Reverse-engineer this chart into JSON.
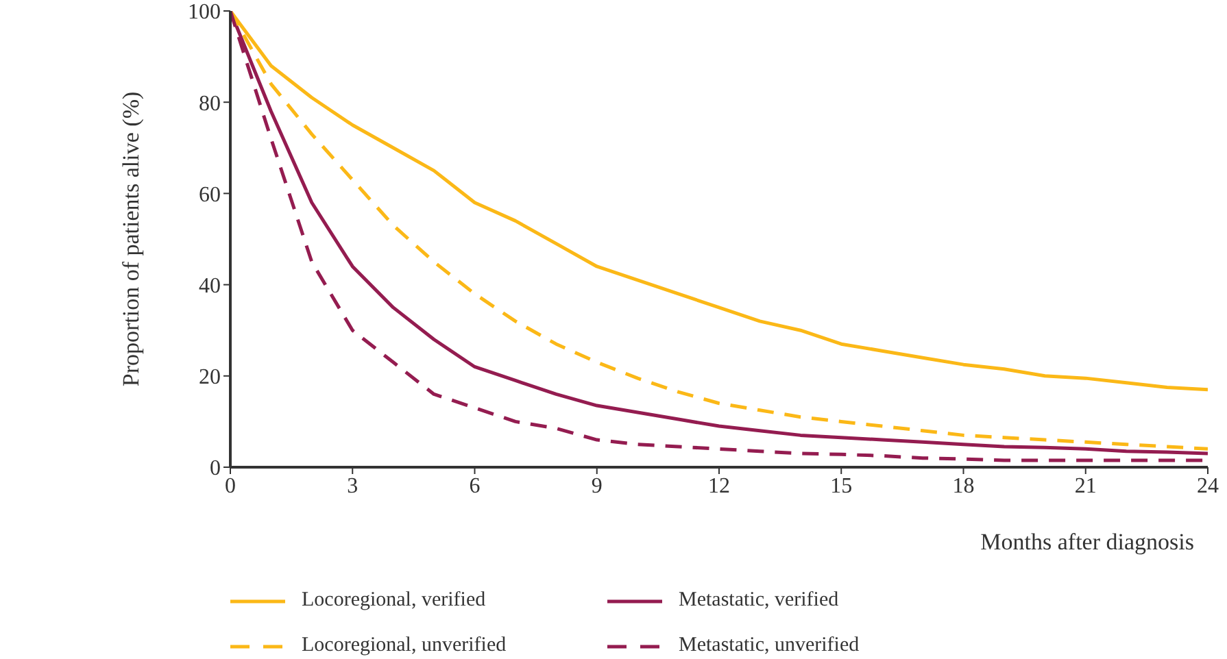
{
  "chart_data": {
    "type": "line",
    "xlabel": "Months after diagnosis",
    "ylabel": "Proportion of patients alive (%)",
    "x": [
      0,
      1,
      2,
      3,
      4,
      5,
      6,
      7,
      8,
      9,
      10,
      11,
      12,
      13,
      14,
      15,
      16,
      17,
      18,
      19,
      20,
      21,
      22,
      23,
      24
    ],
    "series": [
      {
        "name": "Locoregional, verified",
        "color": "#fbb817",
        "line_style": "solid",
        "values": [
          100,
          88,
          81,
          75,
          70,
          65,
          58,
          54,
          49,
          44,
          41,
          38,
          35,
          32,
          30,
          27,
          25.5,
          24,
          22.5,
          21.5,
          20,
          19.5,
          18.5,
          17.5,
          17
        ]
      },
      {
        "name": "Metastatic, verified",
        "color": "#941c50",
        "line_style": "solid",
        "values": [
          100,
          78,
          58,
          44,
          35,
          28,
          22,
          19,
          16,
          13.5,
          12,
          10.5,
          9,
          8,
          7,
          6.5,
          6,
          5.5,
          5,
          4.5,
          4.3,
          4,
          3.5,
          3.3,
          3
        ]
      },
      {
        "name": "Locoregional, unverified",
        "color": "#fbb817",
        "line_style": "dashed",
        "values": [
          100,
          84,
          73,
          63,
          53,
          45,
          38,
          32,
          27,
          23,
          19.5,
          16.5,
          14,
          12.5,
          11,
          10,
          9,
          8,
          7,
          6.5,
          6,
          5.5,
          5,
          4.5,
          4
        ]
      },
      {
        "name": "Metastatic, unverified",
        "color": "#941c50",
        "line_style": "dashed",
        "values": [
          100,
          72,
          45,
          30,
          23,
          16,
          13,
          10,
          8.5,
          6,
          5,
          4.5,
          4,
          3.5,
          3,
          2.8,
          2.5,
          2,
          1.8,
          1.5,
          1.5,
          1.5,
          1.5,
          1.5,
          1.5
        ]
      }
    ],
    "xlim": [
      0,
      24
    ],
    "xticks": [
      0,
      3,
      6,
      9,
      12,
      15,
      18,
      21,
      24
    ],
    "ylim": [
      0,
      100
    ],
    "yticks": [
      0,
      20,
      40,
      60,
      80,
      100
    ],
    "grid": false,
    "legend": "bottom",
    "marker": "none"
  }
}
